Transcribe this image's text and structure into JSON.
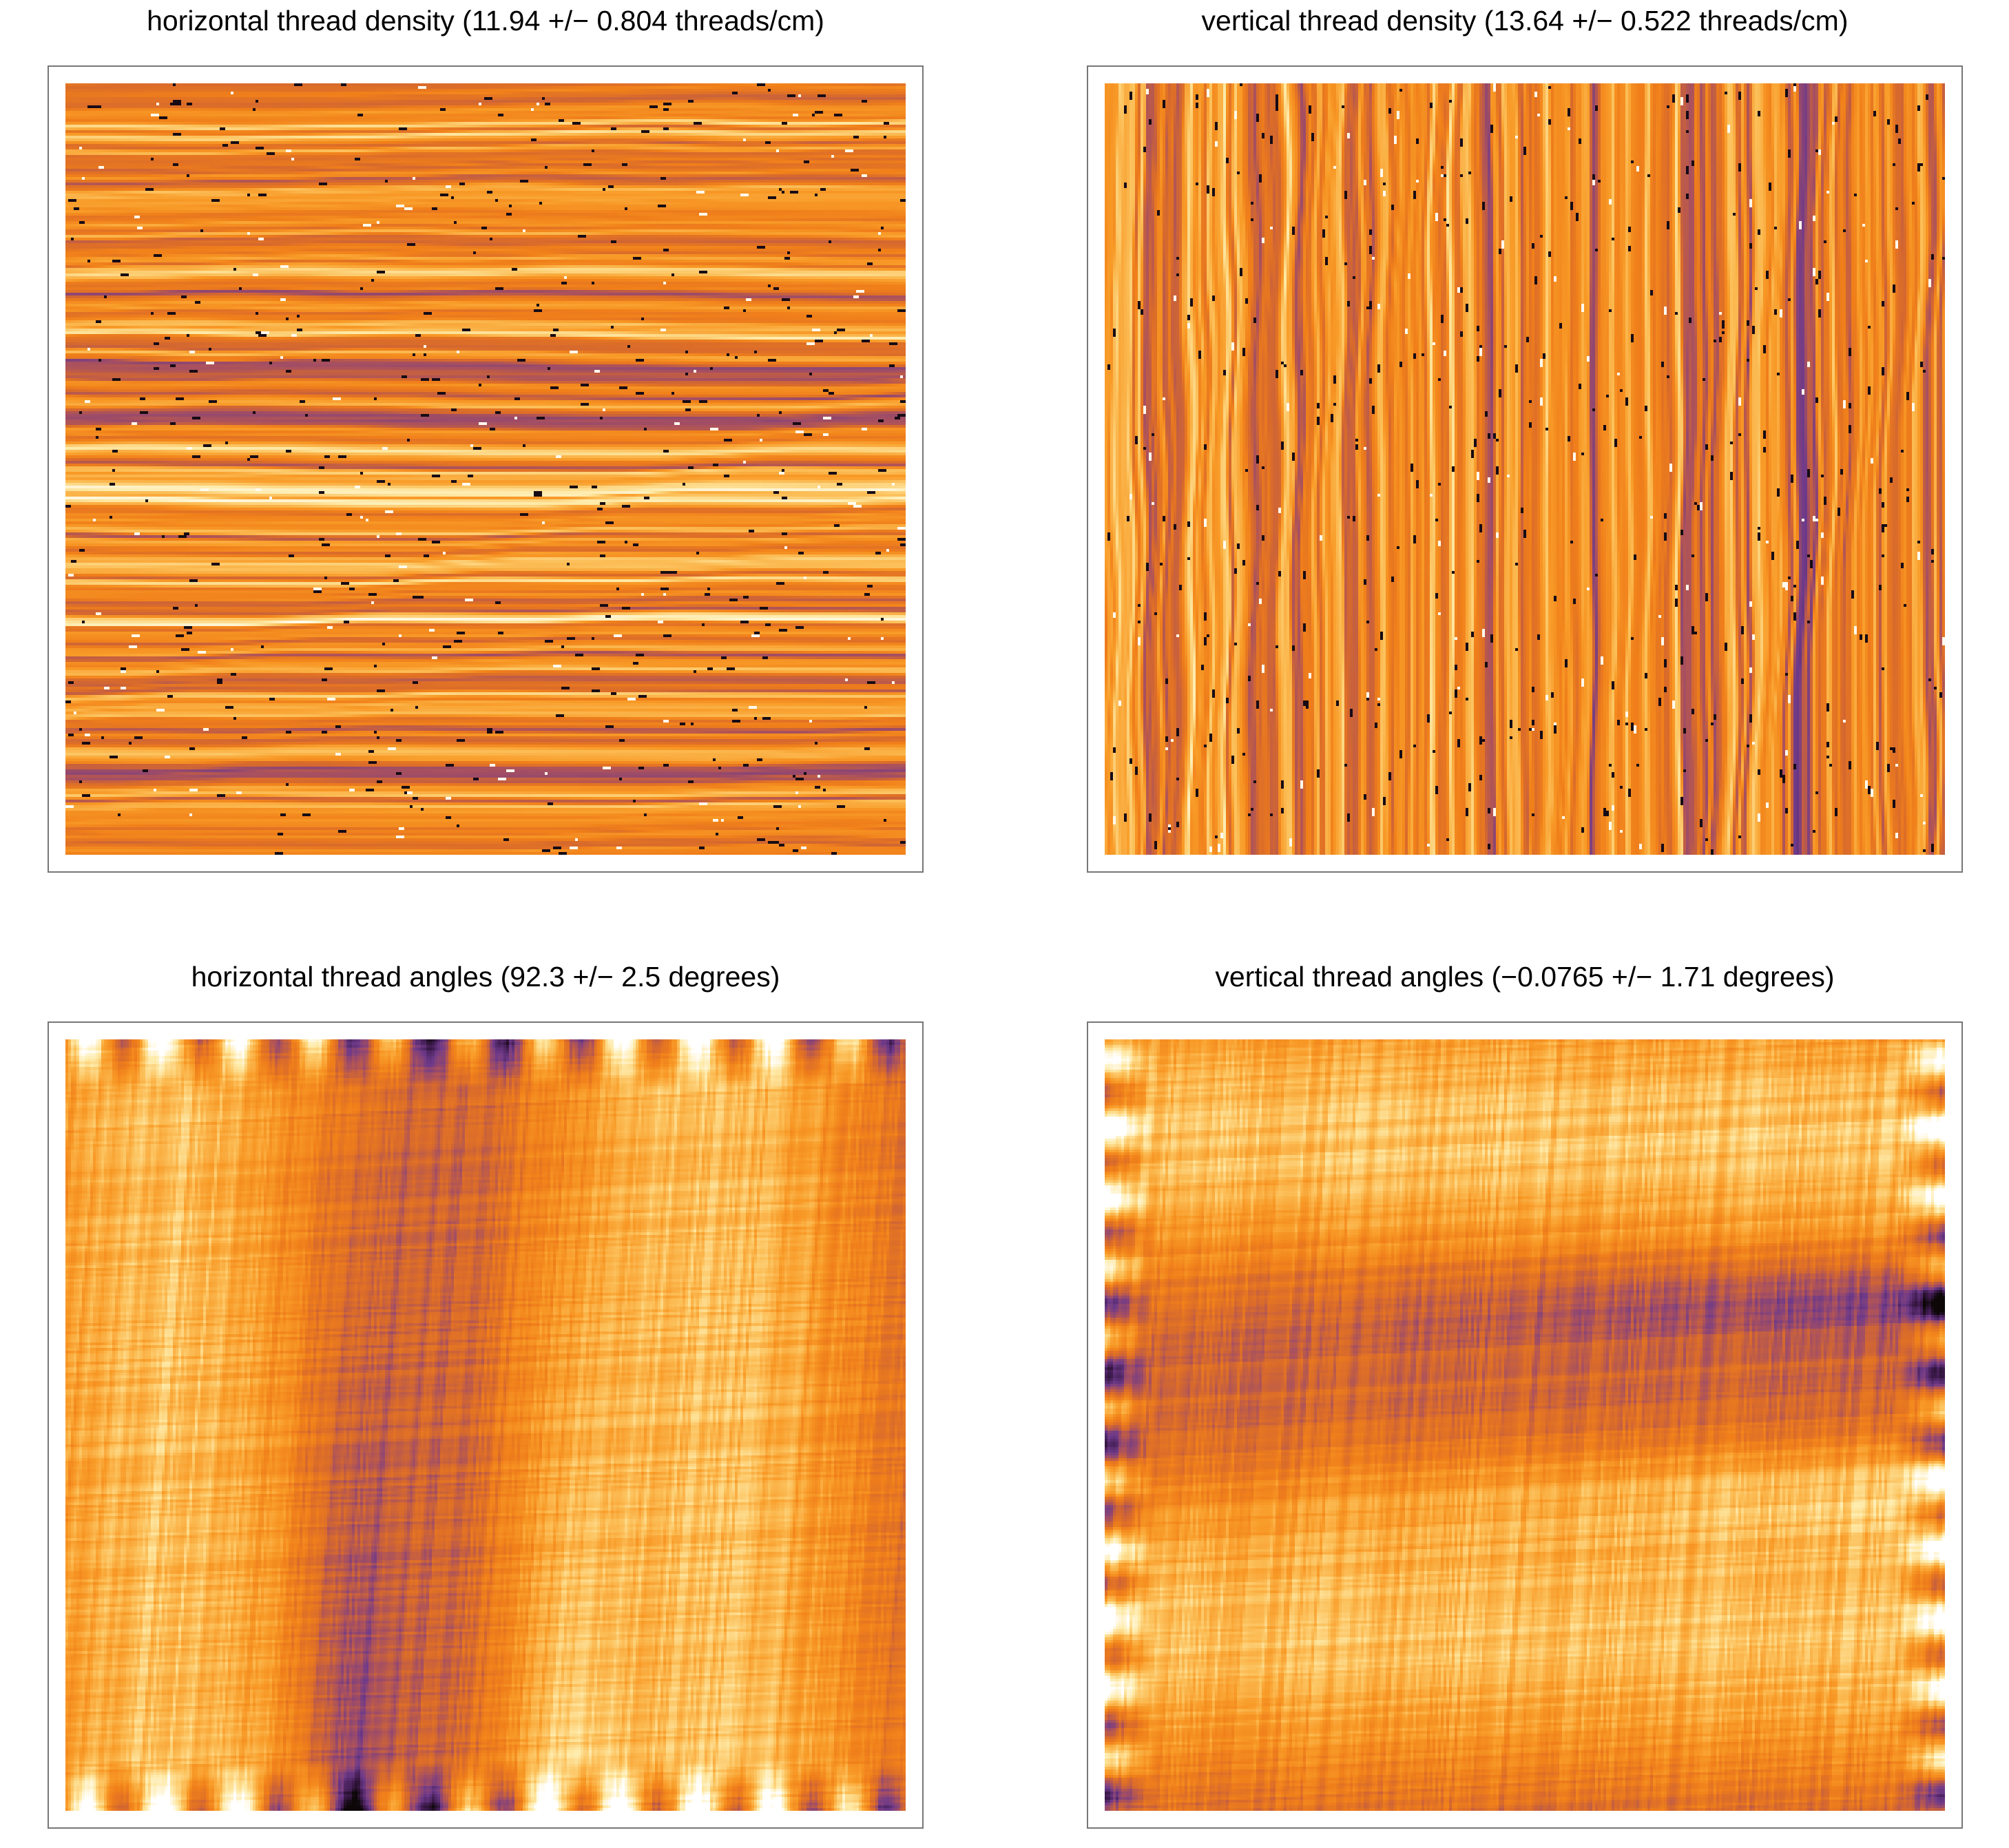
{
  "colors": {
    "colormap": [
      "#0d0708",
      "#3f1b4f",
      "#6e3a8a",
      "#a8505f",
      "#d86a2c",
      "#f07f1a",
      "#f89a27",
      "#fcc05a",
      "#feeaa8",
      "#ffffff"
    ],
    "frame": "#777777",
    "background": "#ffffff"
  },
  "chart_data": [
    {
      "type": "heatmap",
      "title": "horizontal thread density (11.94 +/− 0.804 threads/cm)",
      "pattern": "horizontal-stripes"
    },
    {
      "type": "heatmap",
      "title": "vertical thread density (13.64 +/− 0.522 threads/cm)",
      "pattern": "vertical-stripes"
    },
    {
      "type": "heatmap",
      "title": "horizontal thread angles (92.3 +/− 2.5 degrees)",
      "pattern": "vertical-bands"
    },
    {
      "type": "heatmap",
      "title": "vertical thread angles (−0.0765 +/− 1.71 degrees)",
      "pattern": "horizontal-bands"
    }
  ]
}
